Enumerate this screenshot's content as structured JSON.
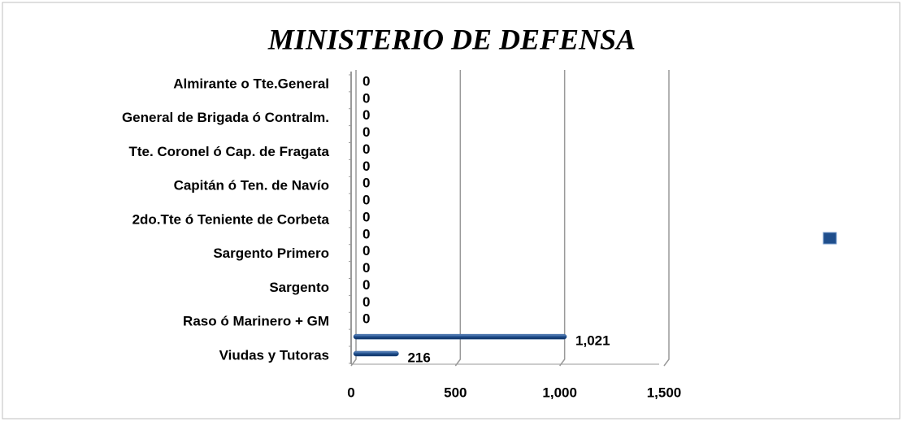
{
  "chart_data": {
    "type": "bar",
    "orientation": "horizontal",
    "title": "MINISTERIO DE DEFENSA",
    "categories": [
      "Almirante o Tte.General",
      null,
      "General de Brigada ó Contralm.",
      null,
      "Tte. Coronel ó Cap. de Fragata",
      null,
      "Capitán ó Ten. de Navío ",
      null,
      "2do.Tte ó Teniente de Corbeta",
      null,
      "Sargento Primero",
      null,
      "Sargento",
      null,
      "Raso  ó Marinero + GM",
      null,
      "Viudas y Tutoras"
    ],
    "values": [
      0,
      0,
      0,
      0,
      0,
      0,
      0,
      0,
      0,
      0,
      0,
      0,
      0,
      0,
      0,
      1021,
      216
    ],
    "value_labels": [
      "0",
      "0",
      "0",
      "0",
      "0",
      "0",
      "0",
      "0",
      "0",
      "0",
      "0",
      "0",
      "0",
      "0",
      "0",
      "1,021",
      "216"
    ],
    "color": "#1f4e8c",
    "xlim": [
      0,
      1500
    ],
    "xticks": [
      0,
      500,
      {
        "value": 1000,
        "label": "1,000"
      },
      {
        "value": 1500,
        "label": "1,500"
      }
    ],
    "grid": true
  }
}
